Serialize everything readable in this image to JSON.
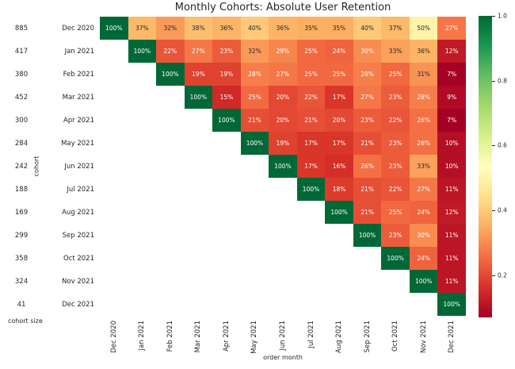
{
  "chart_data": {
    "type": "heatmap",
    "title": "Monthly Cohorts: Absolute User Retention",
    "xlabel": "order month",
    "ylabel": "cohort",
    "corner_label": "cohort size",
    "x_categories": [
      "Dec 2020",
      "Jan 2021",
      "Feb 2021",
      "Mar 2021",
      "Apr 2021",
      "May 2021",
      "Jun 2021",
      "Jul 2021",
      "Aug 2021",
      "Sep 2021",
      "Oct 2021",
      "Nov 2021",
      "Dec 2021"
    ],
    "y_categories": [
      "Dec 2020",
      "Jan 2021",
      "Feb 2021",
      "Mar 2021",
      "Apr 2021",
      "May 2021",
      "Jun 2021",
      "Jul 2021",
      "Aug 2021",
      "Sep 2021",
      "Oct 2021",
      "Nov 2021",
      "Dec 2021"
    ],
    "cohort_sizes": [
      885,
      417,
      380,
      452,
      300,
      284,
      242,
      188,
      169,
      299,
      358,
      324,
      41
    ],
    "values_percent": [
      [
        100,
        37,
        32,
        38,
        36,
        40,
        36,
        35,
        35,
        40,
        37,
        50,
        27
      ],
      [
        null,
        100,
        22,
        27,
        23,
        32,
        29,
        25,
        24,
        30,
        33,
        36,
        12
      ],
      [
        null,
        null,
        100,
        19,
        19,
        28,
        27,
        25,
        25,
        28,
        25,
        31,
        7
      ],
      [
        null,
        null,
        null,
        100,
        15,
        25,
        20,
        22,
        17,
        27,
        23,
        28,
        9
      ],
      [
        null,
        null,
        null,
        null,
        100,
        21,
        20,
        21,
        20,
        23,
        22,
        26,
        7
      ],
      [
        null,
        null,
        null,
        null,
        null,
        100,
        19,
        17,
        17,
        21,
        23,
        26,
        10
      ],
      [
        null,
        null,
        null,
        null,
        null,
        null,
        100,
        17,
        16,
        26,
        23,
        33,
        10
      ],
      [
        null,
        null,
        null,
        null,
        null,
        null,
        null,
        100,
        18,
        21,
        22,
        27,
        11
      ],
      [
        null,
        null,
        null,
        null,
        null,
        null,
        null,
        null,
        100,
        21,
        25,
        24,
        12
      ],
      [
        null,
        null,
        null,
        null,
        null,
        null,
        null,
        null,
        null,
        100,
        23,
        30,
        11
      ],
      [
        null,
        null,
        null,
        null,
        null,
        null,
        null,
        null,
        null,
        null,
        100,
        24,
        11
      ],
      [
        null,
        null,
        null,
        null,
        null,
        null,
        null,
        null,
        null,
        null,
        null,
        100,
        11
      ],
      [
        null,
        null,
        null,
        null,
        null,
        null,
        null,
        null,
        null,
        null,
        null,
        null,
        100
      ]
    ],
    "value_suffix": "%",
    "colormap": "RdYlGn",
    "colormap_colors": [
      "#a50026",
      "#d73027",
      "#f46d43",
      "#fdae61",
      "#fee08b",
      "#ffffbf",
      "#d9ef8b",
      "#a6d96a",
      "#66bd63",
      "#1a9850",
      "#006837"
    ],
    "vmin": 0.07,
    "vmax": 1.0,
    "annotation_text_dark": "#262626",
    "annotation_text_light": "#ffffff",
    "background_color": "#ffffff",
    "legend_position": "right",
    "grid": false,
    "colorbar_ticks": [
      {
        "label": "1.0",
        "value": 1.0
      },
      {
        "label": "0.8",
        "value": 0.8
      },
      {
        "label": "0.6",
        "value": 0.6
      },
      {
        "label": "0.4",
        "value": 0.4
      },
      {
        "label": "0.2",
        "value": 0.2
      }
    ]
  }
}
